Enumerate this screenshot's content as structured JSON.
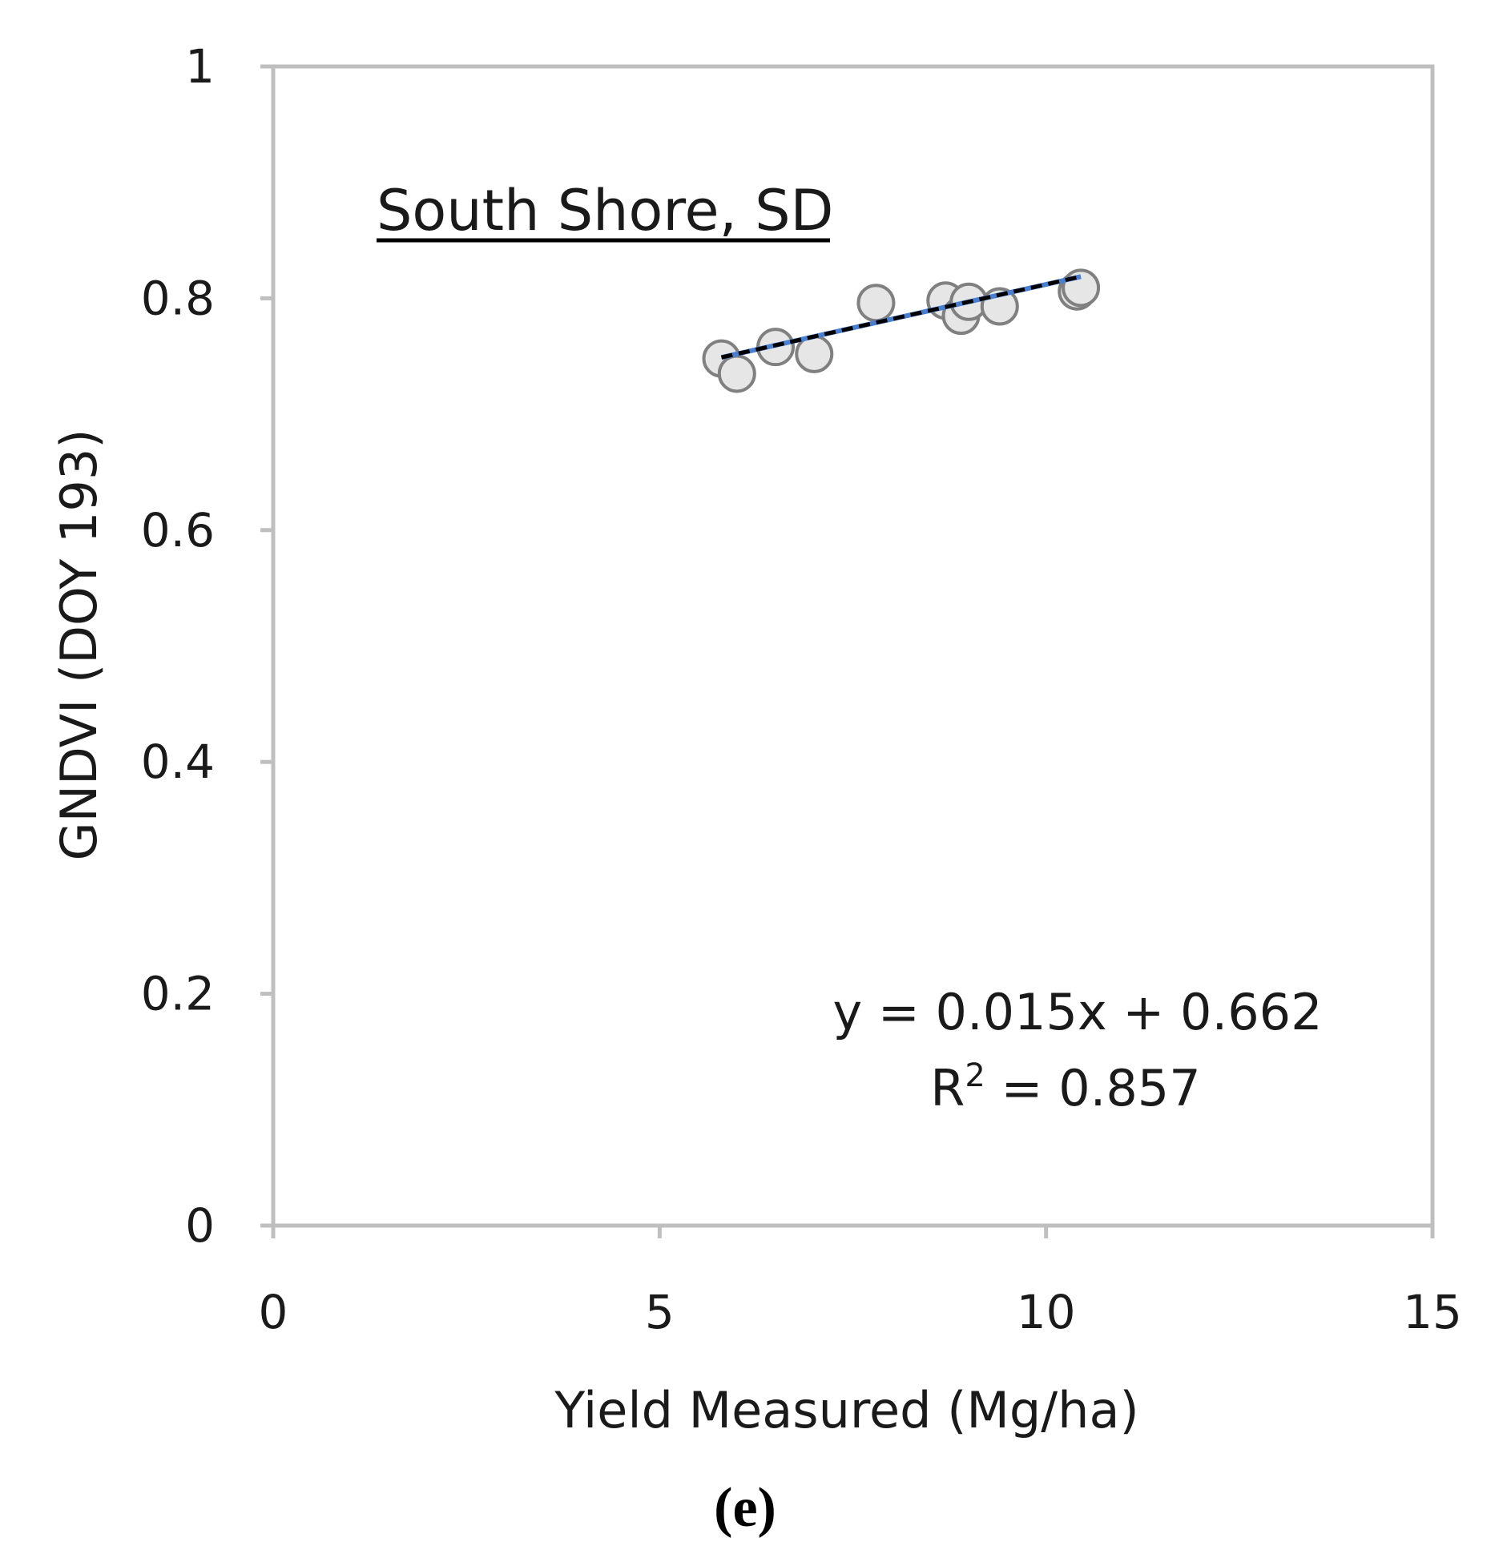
{
  "chart_data": {
    "type": "scatter",
    "title": "South Shore, SD",
    "xlabel": "Yield Measured (Mg/ha)",
    "ylabel": "GNDVI (DOY 193)",
    "xlim": [
      0,
      15
    ],
    "ylim": [
      0,
      1
    ],
    "x_ticks": [
      0,
      5,
      10,
      15
    ],
    "y_ticks": [
      0,
      0.2,
      0.4,
      0.6,
      0.8,
      1
    ],
    "x_tick_labels": [
      "0",
      "5",
      "10",
      "15"
    ],
    "y_tick_labels": [
      "0",
      "0.2",
      "0.4",
      "0.6",
      "0.8",
      "1"
    ],
    "grid": false,
    "series": [
      {
        "points": [
          {
            "x": 5.8,
            "y": 0.748
          },
          {
            "x": 6.0,
            "y": 0.735
          },
          {
            "x": 6.5,
            "y": 0.758
          },
          {
            "x": 7.0,
            "y": 0.752
          },
          {
            "x": 7.8,
            "y": 0.796
          },
          {
            "x": 8.7,
            "y": 0.798
          },
          {
            "x": 8.9,
            "y": 0.785
          },
          {
            "x": 9.0,
            "y": 0.797
          },
          {
            "x": 9.4,
            "y": 0.793
          },
          {
            "x": 10.4,
            "y": 0.806
          },
          {
            "x": 10.45,
            "y": 0.809
          }
        ],
        "marker_fill": "#e6e6e6",
        "marker_stroke": "#808080"
      }
    ],
    "trendline": {
      "slope": 0.015,
      "intercept": 0.662,
      "x_range": [
        5.8,
        10.45
      ],
      "color_dash": "#000000",
      "color_under": "#4a7fd0"
    },
    "equation": "y = 0.015x + 0.662",
    "r2_label": "R",
    "r2_sup": "2",
    "r2_value": " = 0.857",
    "panel_label": "(e)"
  }
}
